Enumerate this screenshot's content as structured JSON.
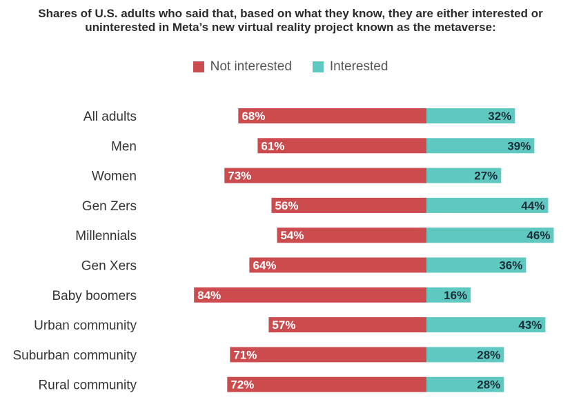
{
  "chart_data": {
    "type": "bar",
    "orientation": "horizontal-diverging",
    "title_lines": [
      "Shares of U.S. adults who said that, based on what they know, they are either interested or",
      "uninterested in Meta’s new virtual reality project known as the metaverse:"
    ],
    "categories": [
      "All adults",
      "Men",
      "Women",
      "Gen Zers",
      "Millennials",
      "Gen Xers",
      "Baby boomers",
      "Urban community",
      "Suburban community",
      "Rural community"
    ],
    "series": [
      {
        "name": "Not interested",
        "color": "#cc4b4e",
        "label_color": "#ffffff",
        "values": [
          68,
          61,
          73,
          56,
          54,
          64,
          84,
          57,
          71,
          72
        ],
        "labels": [
          "68%",
          "61%",
          "73%",
          "56%",
          "54%",
          "64%",
          "84%",
          "57%",
          "71%",
          "72%"
        ]
      },
      {
        "name": "Interested",
        "color": "#5ec8c1",
        "label_color": "#1f2f3a",
        "values": [
          32,
          39,
          27,
          44,
          46,
          36,
          16,
          43,
          28,
          28
        ],
        "labels": [
          "32%",
          "39%",
          "27%",
          "44%",
          "46%",
          "36%",
          "16%",
          "43%",
          "28%",
          "28%"
        ]
      }
    ],
    "legend_position": "top-center",
    "xlim": [
      -100,
      100
    ],
    "grid": false
  }
}
